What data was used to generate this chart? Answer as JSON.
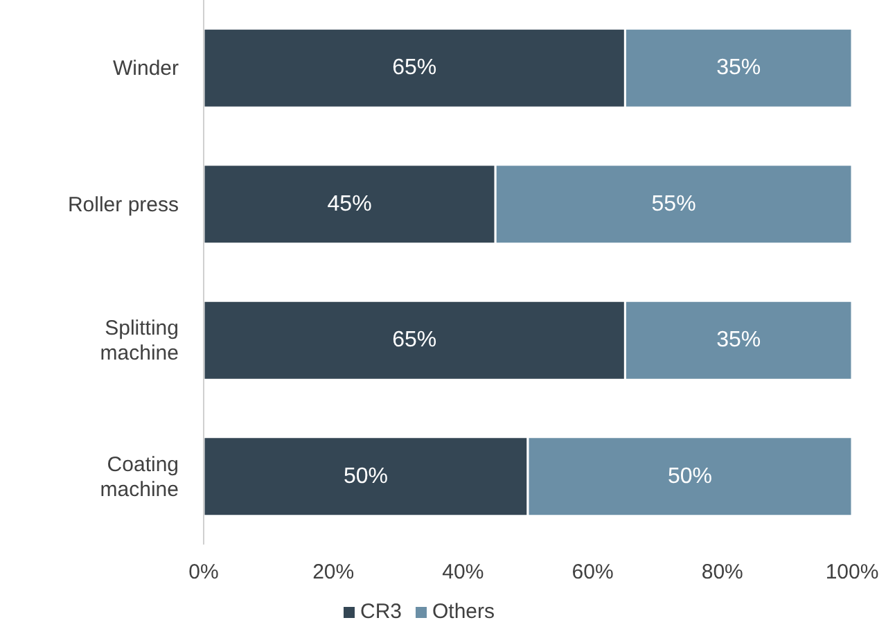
{
  "chart_data": {
    "type": "bar",
    "orientation": "horizontal",
    "stacked": true,
    "categories": [
      "Winder",
      "Roller press",
      "Splitting machine",
      "Coating machine"
    ],
    "series": [
      {
        "name": "CR3",
        "color": "#344654",
        "values": [
          65,
          45,
          65,
          50
        ],
        "value_labels": [
          "65%",
          "45%",
          "65%",
          "50%"
        ]
      },
      {
        "name": "Others",
        "color": "#6b8fa6",
        "values": [
          35,
          55,
          35,
          50
        ],
        "value_labels": [
          "35%",
          "55%",
          "35%",
          "50%"
        ]
      }
    ],
    "xlim": [
      0,
      100
    ],
    "xticks": [
      {
        "value": 0,
        "label": "0%"
      },
      {
        "value": 20,
        "label": "20%"
      },
      {
        "value": 40,
        "label": "40%"
      },
      {
        "value": 60,
        "label": "60%"
      },
      {
        "value": 80,
        "label": "80%"
      },
      {
        "value": 100,
        "label": "100%"
      }
    ],
    "grid": false,
    "legend": "bottom"
  }
}
